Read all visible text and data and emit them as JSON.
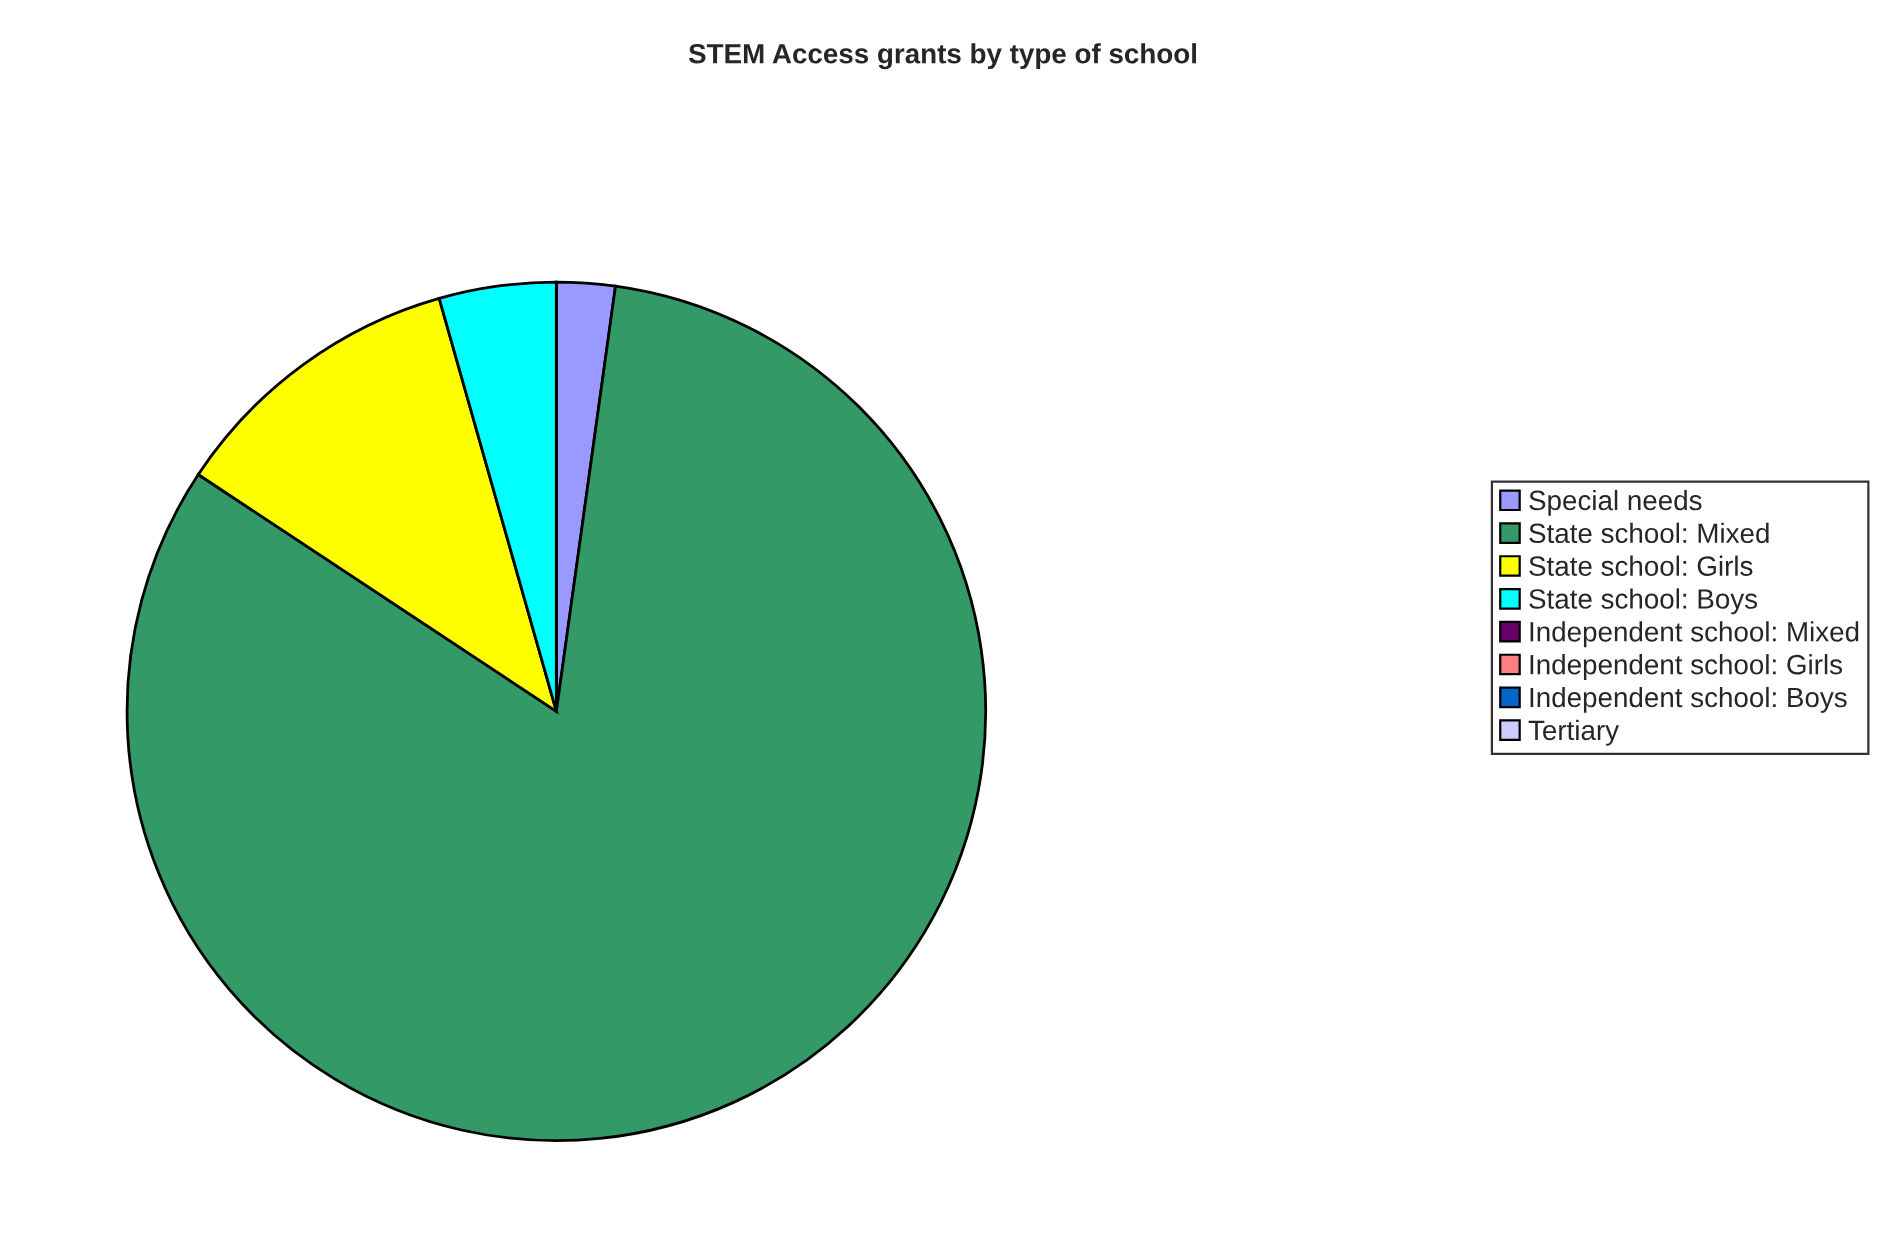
{
  "chart_data": {
    "type": "pie",
    "title": "STEM Access grants by type of school",
    "categories": [
      "Special needs",
      "State school: Mixed",
      "State school: Girls",
      "State school: Boys",
      "Independent school: Mixed",
      "Independent school: Girls",
      "Independent school: Boys",
      "Tertiary"
    ],
    "values": [
      2.2,
      82.1,
      11.3,
      4.4,
      0,
      0,
      0,
      0
    ],
    "colors": [
      "#9999ff",
      "#339966",
      "#ffff00",
      "#00ffff",
      "#660066",
      "#ff8080",
      "#0066cc",
      "#ccccff"
    ],
    "legend": "right"
  }
}
